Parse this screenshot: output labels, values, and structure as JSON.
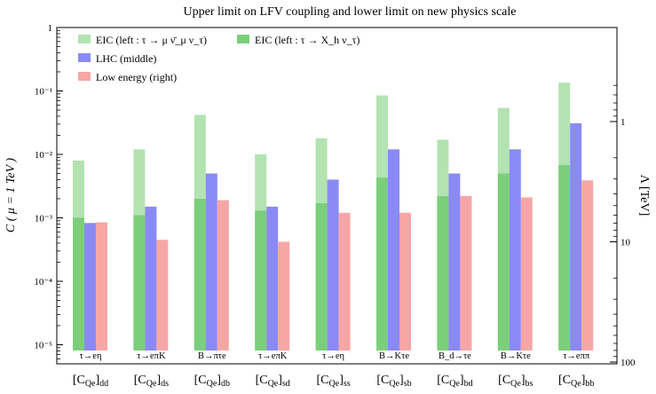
{
  "chart_data": {
    "type": "bar",
    "title": "Upper limit on LFV coupling and lower limit on new physics scale",
    "ylabel": "C ( μ = 1 TeV )",
    "y2label": "Λ [TeV]",
    "yscale": "log",
    "ylim": [
      5e-06,
      1
    ],
    "y2_ticks": [
      "1",
      "10",
      "100"
    ],
    "y_ticks": [
      "1",
      "10⁻¹",
      "10⁻²",
      "10⁻³",
      "10⁻⁴",
      "10⁻⁵"
    ],
    "categories": [
      "[C_Qe]_dd",
      "[C_Qe]_ds",
      "[C_Qe]_db",
      "[C_Qe]_sd",
      "[C_Qe]_ss",
      "[C_Qe]_sb",
      "[C_Qe]_bd",
      "[C_Qe]_bs",
      "[C_Qe]_bb"
    ],
    "category_labels": [
      {
        "base": "[C",
        "sub1": "Qe",
        "close": "]",
        "sub2": "dd"
      },
      {
        "base": "[C",
        "sub1": "Qe",
        "close": "]",
        "sub2": "ds"
      },
      {
        "base": "[C",
        "sub1": "Qe",
        "close": "]",
        "sub2": "db"
      },
      {
        "base": "[C",
        "sub1": "Qe",
        "close": "]",
        "sub2": "sd"
      },
      {
        "base": "[C",
        "sub1": "Qe",
        "close": "]",
        "sub2": "ss"
      },
      {
        "base": "[C",
        "sub1": "Qe",
        "close": "]",
        "sub2": "sb"
      },
      {
        "base": "[C",
        "sub1": "Qe",
        "close": "]",
        "sub2": "bd"
      },
      {
        "base": "[C",
        "sub1": "Qe",
        "close": "]",
        "sub2": "bs"
      },
      {
        "base": "[C",
        "sub1": "Qe",
        "close": "]",
        "sub2": "bb"
      }
    ],
    "process_labels": [
      "τ→eη",
      "τ→eπK",
      "B→πτe",
      "τ→eπK",
      "τ→eη",
      "B→Kτe",
      "B_d→τe",
      "B→Kτe",
      "τ→eππ"
    ],
    "series": [
      {
        "name": "EIC (left : τ → μ ν̄_μ ν_τ)",
        "color": "#b3e3b0",
        "values": [
          0.008,
          0.012,
          0.042,
          0.01,
          0.018,
          0.085,
          0.017,
          0.054,
          0.135
        ]
      },
      {
        "name": "EIC (left : τ → X_h ν_τ)",
        "color": "#7ccf7a",
        "values": [
          0.001,
          0.0011,
          0.002,
          0.0013,
          0.0017,
          0.0043,
          0.0022,
          0.005,
          0.0068
        ]
      },
      {
        "name": "LHC (middle)",
        "color": "#8a8af5",
        "values": [
          0.00083,
          0.0015,
          0.005,
          0.0015,
          0.004,
          0.012,
          0.005,
          0.012,
          0.031
        ]
      },
      {
        "name": "Low energy (right)",
        "color": "#f7a6a6",
        "values": [
          0.00085,
          0.00045,
          0.0019,
          0.00042,
          0.0012,
          0.0012,
          0.0022,
          0.0021,
          0.0039
        ]
      }
    ],
    "legend_placement": "top-left",
    "grid": false
  }
}
